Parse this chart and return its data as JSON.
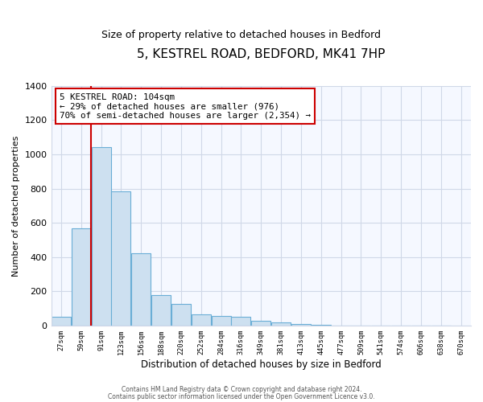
{
  "title": "5, KESTREL ROAD, BEDFORD, MK41 7HP",
  "subtitle": "Size of property relative to detached houses in Bedford",
  "xlabel": "Distribution of detached houses by size in Bedford",
  "ylabel": "Number of detached properties",
  "bin_labels": [
    "27sqm",
    "59sqm",
    "91sqm",
    "123sqm",
    "156sqm",
    "188sqm",
    "220sqm",
    "252sqm",
    "284sqm",
    "316sqm",
    "349sqm",
    "381sqm",
    "413sqm",
    "445sqm",
    "477sqm",
    "509sqm",
    "541sqm",
    "574sqm",
    "606sqm",
    "638sqm",
    "670sqm"
  ],
  "bar_values": [
    50,
    570,
    1040,
    785,
    425,
    178,
    125,
    65,
    55,
    50,
    28,
    18,
    10,
    3,
    1,
    0,
    0,
    0,
    0,
    0
  ],
  "bar_fill_color": "#cde0f0",
  "bar_edge_color": "#6aaed6",
  "property_line_index": 2,
  "ylim": [
    0,
    1400
  ],
  "yticks": [
    0,
    200,
    400,
    600,
    800,
    1000,
    1200,
    1400
  ],
  "annotation_title": "5 KESTREL ROAD: 104sqm",
  "annotation_line1": "← 29% of detached houses are smaller (976)",
  "annotation_line2": "70% of semi-detached houses are larger (2,354) →",
  "vline_color": "#cc0000",
  "footer_line1": "Contains HM Land Registry data © Crown copyright and database right 2024.",
  "footer_line2": "Contains public sector information licensed under the Open Government Licence v3.0.",
  "background_color": "#ffffff",
  "plot_background": "#f5f8ff",
  "grid_color": "#d0d8e8"
}
